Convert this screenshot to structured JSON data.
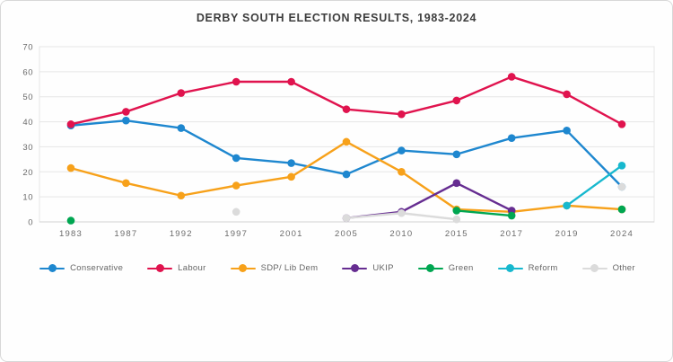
{
  "title": "DERBY SOUTH ELECTION RESULTS, 1983-2024",
  "chart_data": {
    "type": "line",
    "title": "DERBY SOUTH ELECTION RESULTS, 1983-2024",
    "xlabel": "",
    "ylabel": "",
    "categories": [
      "1983",
      "1987",
      "1992",
      "1997",
      "2001",
      "2005",
      "2010",
      "2015",
      "2017",
      "2019",
      "2024"
    ],
    "ylim": [
      0,
      70
    ],
    "ytick_interval": 10,
    "grid": "horizontal",
    "legend_position": "bottom",
    "series": [
      {
        "name": "Conservative",
        "color": "#1E87CF",
        "values": [
          38.5,
          40.5,
          37.5,
          25.5,
          23.5,
          19,
          28.5,
          27,
          33.5,
          36.5,
          14
        ]
      },
      {
        "name": "Labour",
        "color": "#E0134E",
        "values": [
          39,
          44,
          51.5,
          56,
          56,
          45,
          43,
          48.5,
          58,
          51,
          39
        ]
      },
      {
        "name": "SDP/ Lib Dem",
        "color": "#F7A11A",
        "values": [
          21.5,
          15.5,
          10.5,
          14.5,
          18,
          32,
          20,
          5,
          4,
          6.5,
          5
        ]
      },
      {
        "name": "UKIP",
        "color": "#662D91",
        "values": [
          null,
          null,
          null,
          null,
          null,
          1.5,
          4,
          15.5,
          4.5,
          null,
          null
        ]
      },
      {
        "name": "Green",
        "color": "#00A651",
        "values": [
          0.5,
          null,
          null,
          null,
          null,
          null,
          null,
          4.5,
          2.5,
          null,
          5
        ]
      },
      {
        "name": "Reform",
        "color": "#17B8CE",
        "values": [
          null,
          null,
          null,
          null,
          null,
          null,
          null,
          null,
          null,
          6.5,
          22.5
        ]
      },
      {
        "name": "Other",
        "color": "#DBDBDB",
        "values": [
          null,
          null,
          null,
          4,
          null,
          1.5,
          3.5,
          1,
          null,
          null,
          14
        ]
      }
    ]
  }
}
